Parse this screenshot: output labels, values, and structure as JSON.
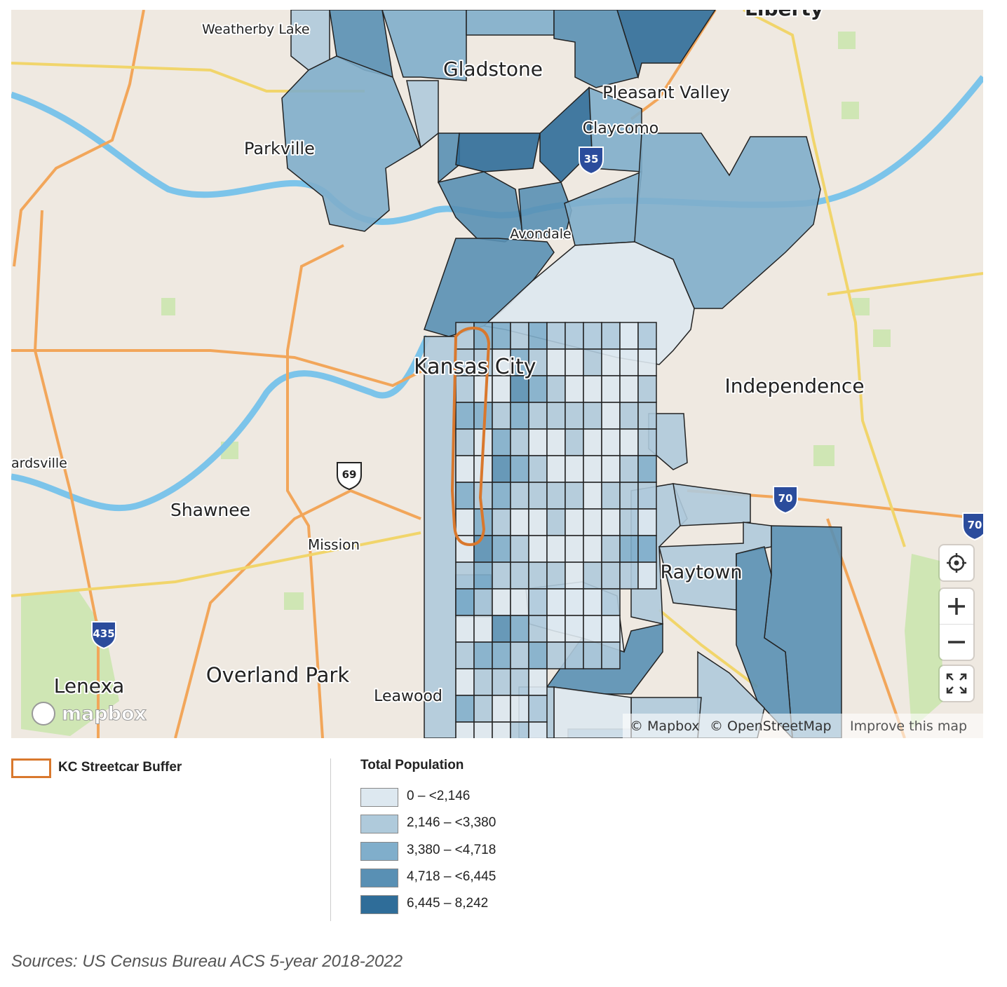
{
  "map": {
    "place_labels": [
      "Liberty",
      "Weatherby Lake",
      "Gladstone",
      "Pleasant Valley",
      "Claycomo",
      "Parkville",
      "Avondale",
      "Kansas City",
      "Independence",
      "ardsville",
      "Shawnee",
      "Mission",
      "Raytown",
      "Overland Park",
      "Lenexa",
      "Leawood"
    ],
    "highway_shields": [
      "69",
      "435",
      "70",
      "70",
      "35"
    ],
    "attribution": [
      "© Mapbox",
      "© OpenStreetMap",
      "Improve this map"
    ],
    "logo": "mapbox"
  },
  "legend": {
    "buffer": {
      "label": "KC Streetcar Buffer",
      "color": "#d9782d"
    },
    "title": "Total Population",
    "classes": [
      {
        "label": "0 – <2,146",
        "color": "#dde8f0"
      },
      {
        "label": "2,146 – <3,380",
        "color": "#afcadb"
      },
      {
        "label": "3,380 – <4,718",
        "color": "#80aecb"
      },
      {
        "label": "4,718 – <6,445",
        "color": "#5990b4"
      },
      {
        "label": "6,445 – 8,242",
        "color": "#2f6d99"
      }
    ]
  },
  "source": "Sources: US Census Bureau ACS 5-year 2018-2022"
}
